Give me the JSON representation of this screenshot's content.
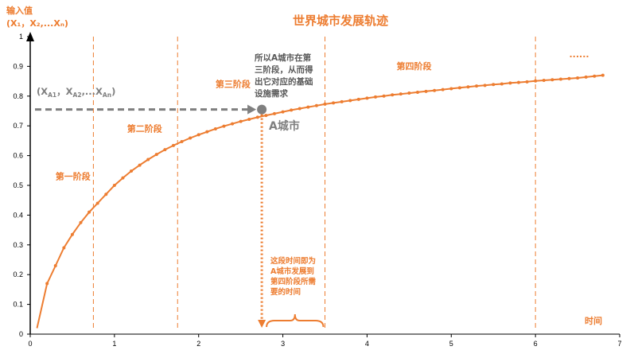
{
  "chart_data": {
    "type": "line",
    "title": "世界城市发展轨迹",
    "ylabel_line1": "输入值",
    "ylabel_line2": "(X₁，X₂,...Xₙ)",
    "xlabel": "时间",
    "xlim": [
      0,
      7
    ],
    "ylim": [
      0,
      1
    ],
    "x_ticks": [
      "0",
      "1",
      "2",
      "3",
      "4",
      "5",
      "6",
      "7"
    ],
    "y_ticks": [
      "0",
      "0.1",
      "0.2",
      "0.3",
      "0.4",
      "0.5",
      "0.6",
      "0.7",
      "0.8",
      "0.9",
      "1"
    ],
    "series": [
      {
        "x": [
          0.08,
          0.2,
          0.3,
          0.4,
          0.5,
          0.6,
          0.7,
          0.8,
          0.9,
          1.0,
          1.1,
          1.2,
          1.3,
          1.4,
          1.5,
          1.6,
          1.7,
          1.8,
          1.9,
          2.0,
          2.1,
          2.2,
          2.3,
          2.4,
          2.5,
          2.6,
          2.7,
          2.8,
          2.9,
          3.0,
          3.1,
          3.2,
          3.3,
          3.4,
          3.5,
          3.6,
          3.7,
          3.8,
          3.9,
          4.0,
          4.1,
          4.2,
          4.3,
          4.4,
          4.5,
          4.6,
          4.7,
          4.8,
          4.9,
          5.0,
          5.1,
          5.2,
          5.3,
          5.4,
          5.5,
          5.6,
          5.7,
          5.8,
          5.9,
          6.0,
          6.1,
          6.2,
          6.3,
          6.4,
          6.5,
          6.6,
          6.7,
          6.8
        ],
        "y": [
          0.02,
          0.17,
          0.23,
          0.29,
          0.335,
          0.375,
          0.41,
          0.44,
          0.47,
          0.5,
          0.525,
          0.548,
          0.568,
          0.587,
          0.604,
          0.62,
          0.634,
          0.647,
          0.659,
          0.67,
          0.68,
          0.69,
          0.699,
          0.707,
          0.715,
          0.722,
          0.729,
          0.735,
          0.741,
          0.747,
          0.753,
          0.758,
          0.763,
          0.768,
          0.773,
          0.777,
          0.781,
          0.785,
          0.789,
          0.793,
          0.797,
          0.8,
          0.804,
          0.807,
          0.81,
          0.813,
          0.816,
          0.819,
          0.822,
          0.825,
          0.828,
          0.831,
          0.834,
          0.836,
          0.839,
          0.841,
          0.844,
          0.846,
          0.848,
          0.851,
          0.853,
          0.855,
          0.857,
          0.859,
          0.861,
          0.864,
          0.867,
          0.87
        ]
      }
    ],
    "stage_dividers_x": [
      0.75,
      1.75,
      3.5,
      6.0
    ],
    "stages": [
      {
        "label": "第一阶段",
        "x": 0.3,
        "y": 0.52
      },
      {
        "label": "第二阶段",
        "x": 1.15,
        "y": 0.68
      },
      {
        "label": "第三阶段",
        "x": 2.2,
        "y": 0.83
      },
      {
        "label": "第四阶段",
        "x": 4.35,
        "y": 0.89
      },
      {
        "label": "......",
        "x": 6.4,
        "y": 0.93
      }
    ],
    "city_point": {
      "x": 2.75,
      "y": 0.755,
      "label": "A城市"
    },
    "input_label": "(X",
    "input_label_parts": [
      "(X",
      "A1",
      "，X",
      "A2",
      ",...X",
      "An",
      ")"
    ],
    "note_grey": [
      "所以A城市在第",
      "三阶段，从而得",
      "出它对应的基础",
      "设施需求"
    ],
    "note_orange": [
      "这段时间即为",
      "A城市发展到",
      "第四阶段所需",
      "要的时间"
    ],
    "colors": {
      "accent": "#ed7d31",
      "grey": "#7f7f7f",
      "text_grey": "#595959"
    }
  }
}
